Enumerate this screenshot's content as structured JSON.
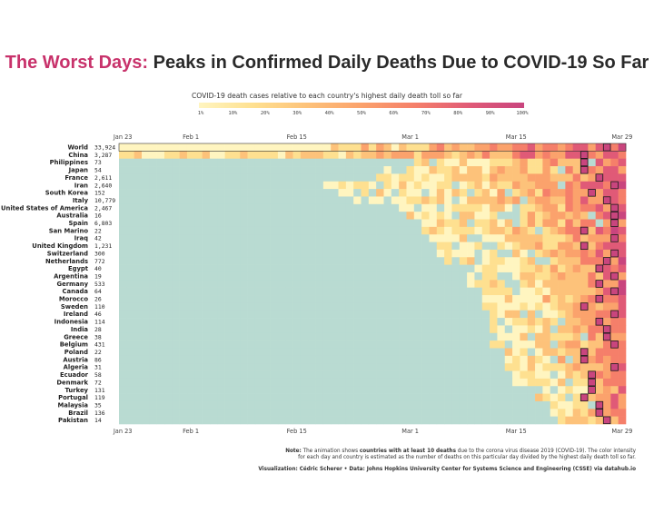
{
  "title": {
    "highlight": "The Worst Days:",
    "rest": " Peaks in Confirmed Daily Deaths Due to COVID-19 So Far"
  },
  "colors": {
    "highlight": "#c8326b",
    "no_deaths": "#b9dbd2",
    "scale": [
      "#fff5c0",
      "#fee090",
      "#fdc27a",
      "#fba26c",
      "#f57f6a",
      "#e05a77",
      "#c9457e"
    ]
  },
  "chart_data": {
    "type": "heatmap",
    "legend_title": "COVID-19 death cases relative to each country's highest daily death toll so far",
    "legend_ticks": [
      "1%",
      "10%",
      "20%",
      "30%",
      "40%",
      "50%",
      "60%",
      "70%",
      "80%",
      "90%",
      "100%"
    ],
    "x_ticks": [
      {
        "label": "Jan 23",
        "day": 0
      },
      {
        "label": "Feb 1",
        "day": 9
      },
      {
        "label": "Feb 15",
        "day": 23
      },
      {
        "label": "Mar 1",
        "day": 38
      },
      {
        "label": "Mar 15",
        "day": 52
      },
      {
        "label": "Mar 29",
        "day": 66
      }
    ],
    "days": 67,
    "rows": [
      {
        "country": "World",
        "total": "33,924",
        "start": 0
      },
      {
        "country": "China",
        "total": "3,287",
        "start": 0
      },
      {
        "country": "Philippines",
        "total": "73",
        "start": 39
      },
      {
        "country": "Japan",
        "total": "54",
        "start": 35
      },
      {
        "country": "France",
        "total": "2,611",
        "start": 34
      },
      {
        "country": "Iran",
        "total": "2,640",
        "start": 27
      },
      {
        "country": "South Korea",
        "total": "152",
        "start": 29
      },
      {
        "country": "Italy",
        "total": "10,779",
        "start": 30
      },
      {
        "country": "United States of America",
        "total": "2,467",
        "start": 37
      },
      {
        "country": "Australia",
        "total": "16",
        "start": 38
      },
      {
        "country": "Spain",
        "total": "6,803",
        "start": 40
      },
      {
        "country": "San Marino",
        "total": "22",
        "start": 40
      },
      {
        "country": "Iraq",
        "total": "42",
        "start": 41
      },
      {
        "country": "United Kingdom",
        "total": "1,231",
        "start": 42
      },
      {
        "country": "Switzerland",
        "total": "300",
        "start": 42
      },
      {
        "country": "Netherlands",
        "total": "772",
        "start": 43
      },
      {
        "country": "Egypt",
        "total": "40",
        "start": 45
      },
      {
        "country": "Argentina",
        "total": "19",
        "start": 45
      },
      {
        "country": "Germany",
        "total": "533",
        "start": 46
      },
      {
        "country": "Canada",
        "total": "64",
        "start": 47
      },
      {
        "country": "Morocco",
        "total": "26",
        "start": 48
      },
      {
        "country": "Sweden",
        "total": "110",
        "start": 48
      },
      {
        "country": "Ireland",
        "total": "46",
        "start": 49
      },
      {
        "country": "Indonesia",
        "total": "114",
        "start": 49
      },
      {
        "country": "India",
        "total": "28",
        "start": 49
      },
      {
        "country": "Greece",
        "total": "38",
        "start": 49
      },
      {
        "country": "Belgium",
        "total": "431",
        "start": 49
      },
      {
        "country": "Poland",
        "total": "22",
        "start": 50
      },
      {
        "country": "Austria",
        "total": "86",
        "start": 51
      },
      {
        "country": "Algeria",
        "total": "31",
        "start": 51
      },
      {
        "country": "Ecuador",
        "total": "58",
        "start": 52
      },
      {
        "country": "Denmark",
        "total": "72",
        "start": 52
      },
      {
        "country": "Turkey",
        "total": "131",
        "start": 56
      },
      {
        "country": "Portugal",
        "total": "119",
        "start": 55
      },
      {
        "country": "Malaysia",
        "total": "35",
        "start": 56
      },
      {
        "country": "Brazil",
        "total": "136",
        "start": 57
      },
      {
        "country": "Pakistan",
        "total": "14",
        "start": 57
      }
    ]
  },
  "note": {
    "prefix": "Note:",
    "part1": " The animation shows ",
    "bold": "countries with at least 10 deaths",
    "part2": " due to the corona virus disease 2019 (COVID-19). The color intensity",
    "line2": "for each day and country is estimated as the number of deaths on this particular day divided by the highest daily death toll so far."
  },
  "credit": "Visualization: Cédric Scherer • Data: Johns Hopkins University Center for Systems Science and Engineering (CSSE) via datahub.io"
}
